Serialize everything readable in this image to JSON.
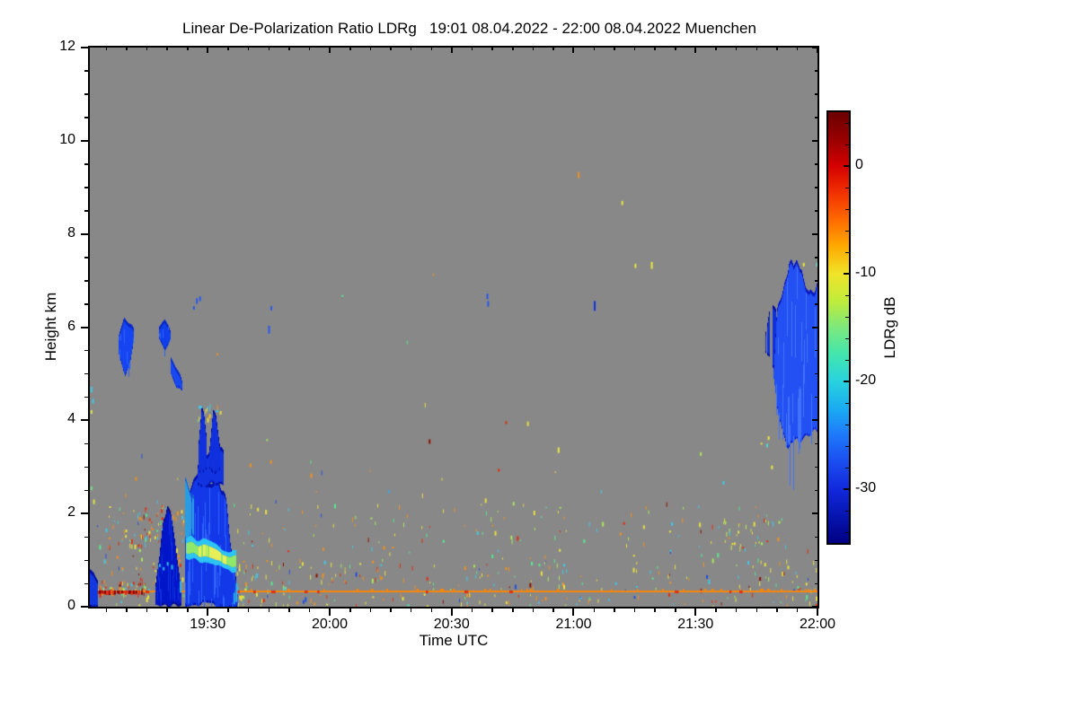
{
  "figure": {
    "background": "#ffffff",
    "no_signal_color": "#888888"
  },
  "chart_data": {
    "type": "heatmap",
    "title": "Linear De-Polarization Ratio LDRg   19:01 08.04.2022 - 22:00 08.04.2022 Muenchen",
    "xlabel": "Time UTC",
    "ylabel": "Height km",
    "x_range_hours": [
      19.0167,
      22.0
    ],
    "y_range_km": [
      0,
      12
    ],
    "x_ticks": [
      {
        "t": 19.5,
        "label": "19:30"
      },
      {
        "t": 20.0,
        "label": "20:00"
      },
      {
        "t": 20.5,
        "label": "20:30"
      },
      {
        "t": 21.0,
        "label": "21:00"
      },
      {
        "t": 21.5,
        "label": "21:30"
      },
      {
        "t": 22.0,
        "label": "22:00"
      }
    ],
    "x_minor_step_hours": 0.08333,
    "y_ticks": [
      {
        "km": 0,
        "label": "0"
      },
      {
        "km": 2,
        "label": "2"
      },
      {
        "km": 4,
        "label": "4"
      },
      {
        "km": 6,
        "label": "6"
      },
      {
        "km": 8,
        "label": "8"
      },
      {
        "km": 10,
        "label": "10"
      },
      {
        "km": 12,
        "label": "12"
      }
    ],
    "y_minor_step_km": 0.5,
    "colorbar": {
      "label": "LDRg dB",
      "vmax": 5,
      "vmin": -35,
      "ticks": [
        {
          "v": 0,
          "label": "0"
        },
        {
          "v": -10,
          "label": "-10"
        },
        {
          "v": -20,
          "label": "-20"
        },
        {
          "v": -30,
          "label": "-30"
        }
      ],
      "minor_step": 2,
      "gradient": [
        [
          0.0,
          "#6B0000"
        ],
        [
          0.06,
          "#960000"
        ],
        [
          0.125,
          "#D40000"
        ],
        [
          0.19,
          "#F23300"
        ],
        [
          0.25,
          "#FF6A00"
        ],
        [
          0.31,
          "#FFA800"
        ],
        [
          0.375,
          "#F0E428"
        ],
        [
          0.44,
          "#BEEC3C"
        ],
        [
          0.5,
          "#7CE87C"
        ],
        [
          0.56,
          "#44E6AC"
        ],
        [
          0.625,
          "#28D2DE"
        ],
        [
          0.69,
          "#1AAAF2"
        ],
        [
          0.75,
          "#1E78FA"
        ],
        [
          0.81,
          "#1B4EF0"
        ],
        [
          0.875,
          "#1128DC"
        ],
        [
          0.94,
          "#0614AE"
        ],
        [
          1.0,
          "#000082"
        ]
      ]
    },
    "palettes": {
      "default": [
        [
          "#E8E040",
          26
        ],
        [
          "#A8E858",
          12
        ],
        [
          "#58E890",
          13
        ],
        [
          "#40C8E8",
          13
        ],
        [
          "#F09020",
          18
        ],
        [
          "#E03010",
          9
        ],
        [
          "#901000",
          4
        ],
        [
          "#2050E0",
          5
        ]
      ],
      "hot": [
        [
          "#F09020",
          30
        ],
        [
          "#E8E040",
          22
        ],
        [
          "#E03010",
          20
        ],
        [
          "#901000",
          10
        ],
        [
          "#40C8E8",
          12
        ],
        [
          "#58E890",
          6
        ]
      ],
      "yellow": [
        [
          "#E8E040",
          45
        ],
        [
          "#C8E84A",
          20
        ],
        [
          "#A8E858",
          15
        ],
        [
          "#F09020",
          12
        ],
        [
          "#40C8E8",
          8
        ]
      ],
      "bright": [
        [
          "#E8E040",
          30
        ],
        [
          "#58E890",
          20
        ],
        [
          "#40C8E8",
          25
        ],
        [
          "#F09020",
          15
        ],
        [
          "#E03010",
          10
        ]
      ]
    },
    "speckle_layers": [
      {
        "t0": 19.03,
        "t1": 22.0,
        "h0": 0.02,
        "h1": 0.3,
        "density": 0.009,
        "palette": "default"
      },
      {
        "t0": 19.03,
        "t1": 22.0,
        "h0": 0.36,
        "h1": 1.05,
        "density": 0.008,
        "palette": "default"
      },
      {
        "t0": 19.03,
        "t1": 22.0,
        "h0": 1.05,
        "h1": 2.25,
        "density": 0.0032,
        "palette": "default"
      },
      {
        "t0": 19.03,
        "t1": 22.0,
        "h0": 2.25,
        "h1": 3.6,
        "density": 0.0004,
        "palette": "default"
      },
      {
        "t0": 19.03,
        "t1": 22.0,
        "h0": 3.6,
        "h1": 7.6,
        "density": 5e-05,
        "palette": "default"
      },
      {
        "t0": 19.17,
        "t1": 19.4,
        "h0": 1.3,
        "h1": 2.2,
        "density": 0.02,
        "palette": "hot"
      },
      {
        "t0": 19.08,
        "t1": 19.17,
        "h0": 1.3,
        "h1": 2.2,
        "density": 0.012,
        "palette": "hot"
      },
      {
        "t0": 19.03,
        "t1": 19.26,
        "h0": 0.28,
        "h1": 0.55,
        "density": 0.07,
        "palette": "hot"
      },
      {
        "t0": 19.6,
        "t1": 19.7,
        "h0": 0.02,
        "h1": 1.0,
        "density": 0.018,
        "palette": "bright"
      },
      {
        "t0": 21.56,
        "t1": 21.82,
        "h0": 1.2,
        "h1": 1.85,
        "density": 0.012,
        "palette": "yellow"
      },
      {
        "t0": 19.455,
        "t1": 19.55,
        "h0": 3.95,
        "h1": 4.35,
        "density": 0.04,
        "palette": "bright"
      }
    ],
    "surface_line": {
      "h": 0.33,
      "t0": 19.03,
      "t1": 22.0,
      "color": "#F8860A",
      "dash_colors": [
        "#E03010",
        "#8B0000"
      ],
      "dense_t0": 19.03,
      "dense_t1": 19.23
    },
    "blobs": [
      {
        "name": "edge-strip",
        "t0": 19.018,
        "t1": 19.048,
        "top": [
          [
            0,
            0.78
          ],
          [
            0.5,
            0.72
          ],
          [
            1,
            0.55
          ]
        ],
        "bottom": [
          [
            0,
            0.02
          ],
          [
            1,
            0.02
          ]
        ],
        "core": "#1238E0",
        "edge": "#000CA0",
        "rough": 0.05
      },
      {
        "name": "cloud-a",
        "t0": 19.135,
        "t1": 19.195,
        "top": [
          [
            0,
            5.75
          ],
          [
            0.35,
            6.18
          ],
          [
            0.7,
            6.05
          ],
          [
            1,
            5.9
          ]
        ],
        "bottom": [
          [
            0,
            5.45
          ],
          [
            0.45,
            4.95
          ],
          [
            0.75,
            5.15
          ],
          [
            1,
            5.65
          ]
        ],
        "core": "#1545F0",
        "edge": "#0828C8",
        "rough": 0.1,
        "streak": "#2E62F8"
      },
      {
        "name": "cloud-b",
        "t0": 19.3,
        "t1": 19.345,
        "top": [
          [
            0,
            6.02
          ],
          [
            0.5,
            6.12
          ],
          [
            1,
            5.92
          ]
        ],
        "bottom": [
          [
            0,
            5.78
          ],
          [
            0.5,
            5.5
          ],
          [
            1,
            5.75
          ]
        ],
        "core": "#1040EC",
        "edge": "#0828C8",
        "rough": 0.07,
        "streak": "#2E62F8"
      },
      {
        "name": "cloud-c",
        "t0": 19.35,
        "t1": 19.392,
        "top": [
          [
            0,
            5.35
          ],
          [
            0.5,
            5.12
          ],
          [
            1,
            4.85
          ]
        ],
        "bottom": [
          [
            0,
            5.02
          ],
          [
            0.5,
            4.72
          ],
          [
            1,
            4.6
          ]
        ],
        "core": "#1848F0",
        "edge": "#0A2CD0",
        "rough": 0.08
      },
      {
        "name": "dark-column",
        "t0": 19.285,
        "t1": 19.39,
        "top": [
          [
            0,
            0.5
          ],
          [
            0.15,
            1.1
          ],
          [
            0.3,
            1.95
          ],
          [
            0.45,
            2.15
          ],
          [
            0.6,
            1.9
          ],
          [
            0.75,
            1.35
          ],
          [
            0.9,
            0.75
          ],
          [
            1,
            0.45
          ]
        ],
        "bottom": [
          [
            0,
            0.02
          ],
          [
            1,
            0.02
          ]
        ],
        "core": "#0016C8",
        "edge": "#000A8C",
        "rough": 0.12,
        "streak": "#1030E0"
      },
      {
        "name": "plume-main",
        "t0": 19.408,
        "t1": 19.62,
        "top": [
          [
            0,
            1.55
          ],
          [
            0.07,
            2.5
          ],
          [
            0.16,
            2.72
          ],
          [
            0.3,
            2.85
          ],
          [
            0.5,
            2.72
          ],
          [
            0.62,
            2.8
          ],
          [
            0.72,
            2.55
          ],
          [
            0.8,
            2.05
          ],
          [
            0.88,
            1.35
          ],
          [
            0.95,
            0.75
          ],
          [
            1,
            0.35
          ]
        ],
        "bottom": [
          [
            0,
            0.02
          ],
          [
            1,
            0.02
          ]
        ],
        "core": "#1238E8",
        "edge": "#0010A8",
        "rough": 0.15,
        "streak": "#2E62F8"
      },
      {
        "name": "plume-left-cyan",
        "t0": 19.408,
        "t1": 19.44,
        "top": [
          [
            0,
            2.7
          ],
          [
            0.5,
            2.6
          ],
          [
            1,
            2.3
          ]
        ],
        "bottom": [
          [
            0,
            1.35
          ],
          [
            0.5,
            1.5
          ],
          [
            1,
            1.45
          ]
        ],
        "core": "#2A9DE0",
        "edge": "#1764D8",
        "rough": 0.2,
        "gap": 0.25
      },
      {
        "name": "plume-mid",
        "t0": 19.46,
        "t1": 19.56,
        "top": [
          [
            0,
            3.1
          ],
          [
            0.3,
            3.35
          ],
          [
            0.6,
            3.3
          ],
          [
            1,
            3.4
          ]
        ],
        "bottom": [
          [
            0,
            2.6
          ],
          [
            1,
            2.6
          ]
        ],
        "core": "#1134E0",
        "edge": "#0010A8",
        "rough": 0.12
      },
      {
        "name": "plume-spike1",
        "t0": 19.462,
        "t1": 19.492,
        "top": [
          [
            0,
            3.6
          ],
          [
            0.4,
            4.28
          ],
          [
            0.7,
            4.1
          ],
          [
            1,
            3.7
          ]
        ],
        "bottom": [
          [
            0,
            2.8
          ],
          [
            1,
            2.9
          ]
        ],
        "core": "#0F30DC",
        "edge": "#000CA0",
        "rough": 0.15
      },
      {
        "name": "plume-spike2",
        "t0": 19.508,
        "t1": 19.548,
        "top": [
          [
            0,
            3.5
          ],
          [
            0.35,
            4.12
          ],
          [
            0.65,
            4.0
          ],
          [
            1,
            3.45
          ]
        ],
        "bottom": [
          [
            0,
            2.9
          ],
          [
            1,
            2.95
          ]
        ],
        "core": "#0F30DC",
        "edge": "#000CA0",
        "rough": 0.15
      },
      {
        "name": "right-cloud-fringe",
        "t0": 21.785,
        "t1": 21.835,
        "top": [
          [
            0,
            6.1
          ],
          [
            0.5,
            6.45
          ],
          [
            1,
            6.3
          ]
        ],
        "bottom": [
          [
            0,
            5.5
          ],
          [
            0.5,
            5.25
          ],
          [
            1,
            5.0
          ]
        ],
        "core": "#0F30D8",
        "edge": "#000CA0",
        "rough": 0.3,
        "gap": 0.45
      },
      {
        "name": "right-cloud",
        "t0": 21.82,
        "t1": 22.0,
        "top": [
          [
            0,
            5.3
          ],
          [
            0.07,
            6.35
          ],
          [
            0.15,
            6.6
          ],
          [
            0.25,
            7.1
          ],
          [
            0.35,
            7.42
          ],
          [
            0.45,
            7.2
          ],
          [
            0.52,
            7.38
          ],
          [
            0.6,
            6.95
          ],
          [
            0.7,
            7.05
          ],
          [
            0.8,
            6.7
          ],
          [
            0.9,
            6.85
          ],
          [
            1,
            6.95
          ]
        ],
        "bottom": [
          [
            0,
            4.9
          ],
          [
            0.1,
            4.25
          ],
          [
            0.2,
            3.9
          ],
          [
            0.32,
            3.55
          ],
          [
            0.5,
            3.45
          ],
          [
            0.65,
            3.55
          ],
          [
            0.8,
            3.65
          ],
          [
            1,
            3.72
          ]
        ],
        "core": "#2350F2",
        "edge": "#0816BE",
        "rough": 0.3,
        "streak": "#4273FA"
      }
    ],
    "band": {
      "t0": 19.412,
      "t1": 19.612,
      "center": [
        [
          0,
          1.28
        ],
        [
          0.5,
          1.15
        ],
        [
          1,
          0.97
        ]
      ],
      "half": 0.22,
      "edge_color": "#2CC4F4",
      "core_color": "#E8EE58",
      "mid_color": "#8FE86A",
      "bright": [
        0.25,
        0.8
      ]
    },
    "dots": [
      [
        20.643,
        6.6,
        6.72,
        "#2858F0"
      ],
      [
        20.646,
        6.44,
        6.56,
        "#2858F0"
      ],
      [
        21.083,
        6.35,
        6.56,
        "#1030E0"
      ],
      [
        21.017,
        9.2,
        9.33,
        "#F09020"
      ],
      [
        21.196,
        8.62,
        8.71,
        "#E8E840"
      ],
      [
        21.25,
        7.27,
        7.36,
        "#E8E840"
      ],
      [
        21.317,
        7.25,
        7.4,
        "#E8E840"
      ],
      [
        19.452,
        6.5,
        6.62,
        "#2858F0"
      ],
      [
        19.465,
        6.56,
        6.66,
        "#2858F0"
      ],
      [
        19.44,
        6.38,
        6.45,
        "#2858F0"
      ],
      [
        19.748,
        5.86,
        6.03,
        "#2858F0"
      ],
      [
        19.757,
        6.36,
        6.45,
        "#2858F0"
      ],
      [
        19.02,
        4.6,
        4.72,
        "#40C8E8"
      ],
      [
        19.026,
        4.36,
        4.46,
        "#40C8E8"
      ],
      [
        19.02,
        4.14,
        4.22,
        "#D8E850"
      ],
      [
        19.02,
        2.5,
        2.58,
        "#70E080"
      ],
      [
        19.03,
        2.2,
        2.3,
        "#D8E850"
      ],
      [
        21.94,
        7.3,
        7.38,
        "#E8E840"
      ],
      [
        21.995,
        7.3,
        7.38,
        "#60E0D0"
      ],
      [
        21.796,
        3.58,
        3.66,
        "#E8E840"
      ],
      [
        21.79,
        3.42,
        3.5,
        "#50D8D0"
      ],
      [
        21.81,
        2.95,
        3.03,
        "#E8E840"
      ],
      [
        20.24,
        2.44,
        2.5,
        "#35AAE8"
      ],
      [
        20.72,
        3.92,
        3.98,
        "#E03010"
      ],
      [
        20.69,
        2.9,
        2.96,
        "#E03010"
      ],
      [
        20.935,
        3.3,
        3.42,
        "#E8E840"
      ],
      [
        19.3,
        0.85,
        0.92,
        "#30B8E8"
      ],
      [
        19.316,
        0.78,
        0.85,
        "#30B8E8"
      ],
      [
        19.332,
        0.88,
        0.96,
        "#30B8E8"
      ],
      [
        19.35,
        0.8,
        0.9,
        "#30B8E8"
      ],
      [
        19.385,
        0.3,
        0.55,
        "#30B8E8"
      ],
      [
        19.615,
        0.1,
        0.5,
        "#30B8E8"
      ],
      [
        19.605,
        0.05,
        0.3,
        "#28A8E0"
      ],
      [
        19.376,
        1.05,
        1.12,
        "#F09020"
      ],
      [
        19.38,
        0.95,
        1.02,
        "#F09020"
      ],
      [
        19.385,
        0.85,
        0.92,
        "#E03010"
      ],
      [
        19.37,
        1.15,
        1.25,
        "#E8E040"
      ]
    ]
  }
}
